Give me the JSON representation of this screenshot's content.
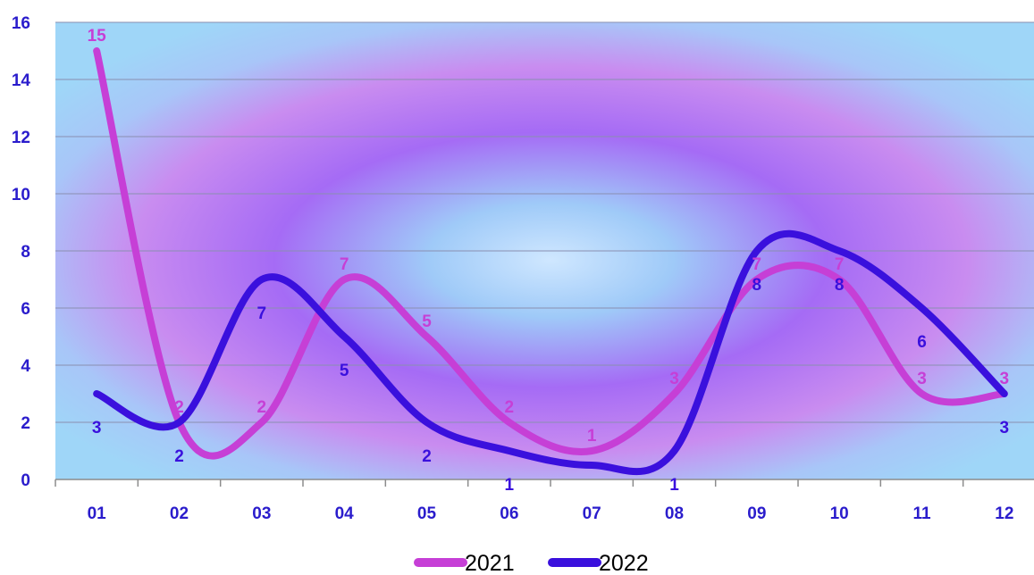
{
  "chart_data": {
    "type": "line",
    "smooth": true,
    "categories": [
      "01",
      "02",
      "03",
      "04",
      "05",
      "06",
      "07",
      "08",
      "09",
      "10",
      "11",
      "12"
    ],
    "ylim": [
      0,
      16
    ],
    "yticks": [
      "0",
      "2",
      "4",
      "6",
      "8",
      "10",
      "12",
      "14",
      "16"
    ],
    "grid": true,
    "legend": "bottom",
    "series": [
      {
        "name": "2021",
        "color": "#c63fd6",
        "values": [
          15,
          2,
          2,
          7,
          5,
          2,
          1,
          3,
          7,
          7,
          3,
          3
        ],
        "labels": [
          "15",
          "2",
          "2",
          "7",
          "5",
          "2",
          "1",
          "3",
          "7",
          "7",
          "3",
          "3"
        ]
      },
      {
        "name": "2022",
        "color": "#3a10dd",
        "values": [
          3,
          2,
          7,
          5,
          2,
          1,
          0.5,
          1,
          8,
          8,
          6,
          3
        ],
        "labels": [
          "3",
          "2",
          "7",
          "5",
          "2",
          "1",
          "",
          "1",
          "8",
          "8",
          "6",
          "3"
        ]
      }
    ]
  }
}
